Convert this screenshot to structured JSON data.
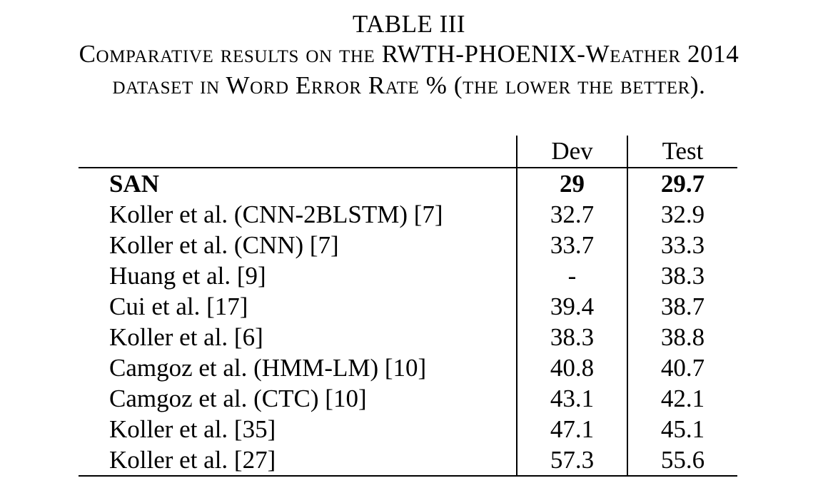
{
  "caption": {
    "label": "TABLE III",
    "line1": "Comparative results on the RWTH-PHOENIX-Weather 2014",
    "line2": "dataset in Word Error Rate % (the lower the better)."
  },
  "table": {
    "headers": [
      "",
      "Dev",
      "Test"
    ],
    "rows": [
      {
        "method": "SAN",
        "dev": "29",
        "test": "29.7",
        "bold": true
      },
      {
        "method": "Koller et al. (CNN-2BLSTM) [7]",
        "dev": "32.7",
        "test": "32.9"
      },
      {
        "method": "Koller et al. (CNN) [7]",
        "dev": "33.7",
        "test": "33.3"
      },
      {
        "method": "Huang et al. [9]",
        "dev": "-",
        "test": "38.3"
      },
      {
        "method": "Cui et al. [17]",
        "dev": "39.4",
        "test": "38.7"
      },
      {
        "method": "Koller et al. [6]",
        "dev": "38.3",
        "test": "38.8"
      },
      {
        "method": "Camgoz et al. (HMM-LM) [10]",
        "dev": "40.8",
        "test": "40.7"
      },
      {
        "method": "Camgoz et al. (CTC) [10]",
        "dev": "43.1",
        "test": "42.1"
      },
      {
        "method": "Koller et al. [35]",
        "dev": "47.1",
        "test": "45.1"
      },
      {
        "method": "Koller et al. [27]",
        "dev": "57.3",
        "test": "55.6"
      }
    ]
  }
}
